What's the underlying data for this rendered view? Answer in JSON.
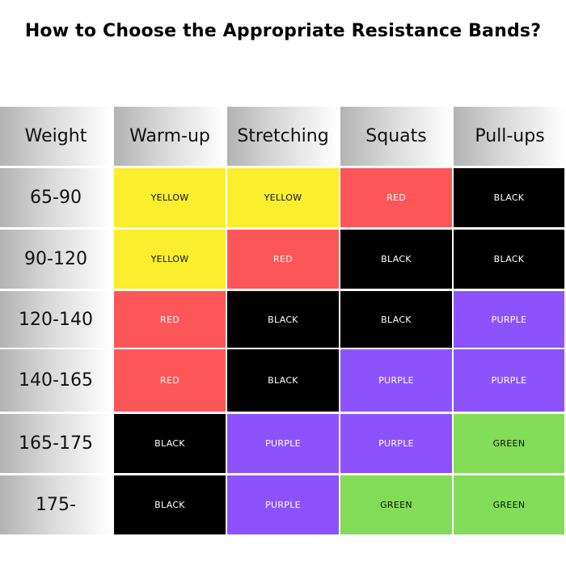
{
  "title": "How to Choose the Appropriate Resistance Bands?",
  "colors": {
    "YELLOW": "#fbee2d",
    "RED": "#fc5659",
    "BLACK": "#000000",
    "PURPLE": "#8c53fd",
    "GREEN": "#83dc58"
  },
  "chart_data": {
    "type": "table",
    "title": "How to Choose the Appropriate Resistance Bands?",
    "columns": [
      "Weight",
      "Warm-up",
      "Stretching",
      "Squats",
      "Pull-ups"
    ],
    "rows": [
      {
        "weight": "65-90",
        "bands": [
          "YELLOW",
          "YELLOW",
          "RED",
          "BLACK"
        ]
      },
      {
        "weight": "90-120",
        "bands": [
          "YELLOW",
          "RED",
          "BLACK",
          "BLACK"
        ]
      },
      {
        "weight": "120-140",
        "bands": [
          "RED",
          "BLACK",
          "BLACK",
          "PURPLE"
        ]
      },
      {
        "weight": "140-165",
        "bands": [
          "RED",
          "BLACK",
          "PURPLE",
          "PURPLE"
        ]
      },
      {
        "weight": "165-175",
        "bands": [
          "BLACK",
          "PURPLE",
          "PURPLE",
          "GREEN"
        ]
      },
      {
        "weight": "175-",
        "bands": [
          "BLACK",
          "PURPLE",
          "GREEN",
          "GREEN"
        ]
      }
    ]
  }
}
